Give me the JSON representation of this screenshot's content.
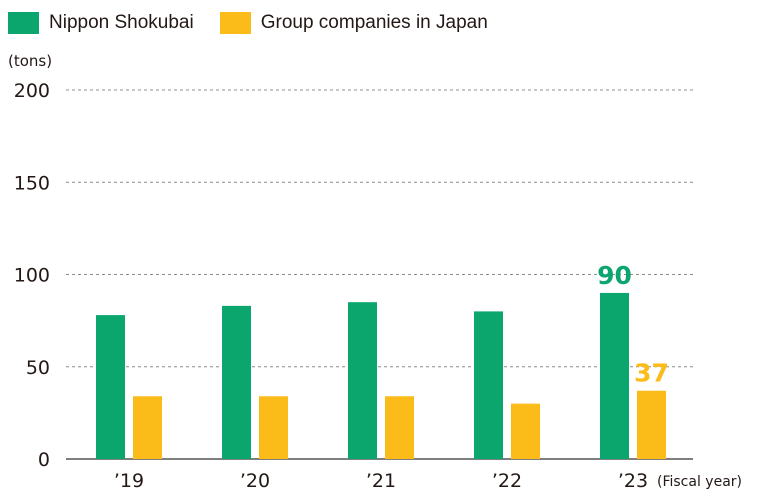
{
  "chart_data": {
    "type": "bar",
    "unit_label": "(tons)",
    "x_suffix": "(Fiscal year)",
    "categories": [
      "’19",
      "’20",
      "’21",
      "’22",
      "’23"
    ],
    "series": [
      {
        "name": "Nippon Shokubai",
        "color": "#0aa66e",
        "values": [
          78,
          83,
          85,
          80,
          90
        ]
      },
      {
        "name": "Group companies in Japan",
        "color": "#fbbb18",
        "values": [
          34,
          34,
          34,
          30,
          37
        ]
      }
    ],
    "data_labels": [
      {
        "series": 0,
        "index": 4,
        "text": "90"
      },
      {
        "series": 1,
        "index": 4,
        "text": "37"
      }
    ],
    "yticks": [
      0,
      50,
      100,
      150,
      200
    ],
    "ylim": [
      0,
      200
    ],
    "grid": true,
    "legend_position": "top-left"
  }
}
